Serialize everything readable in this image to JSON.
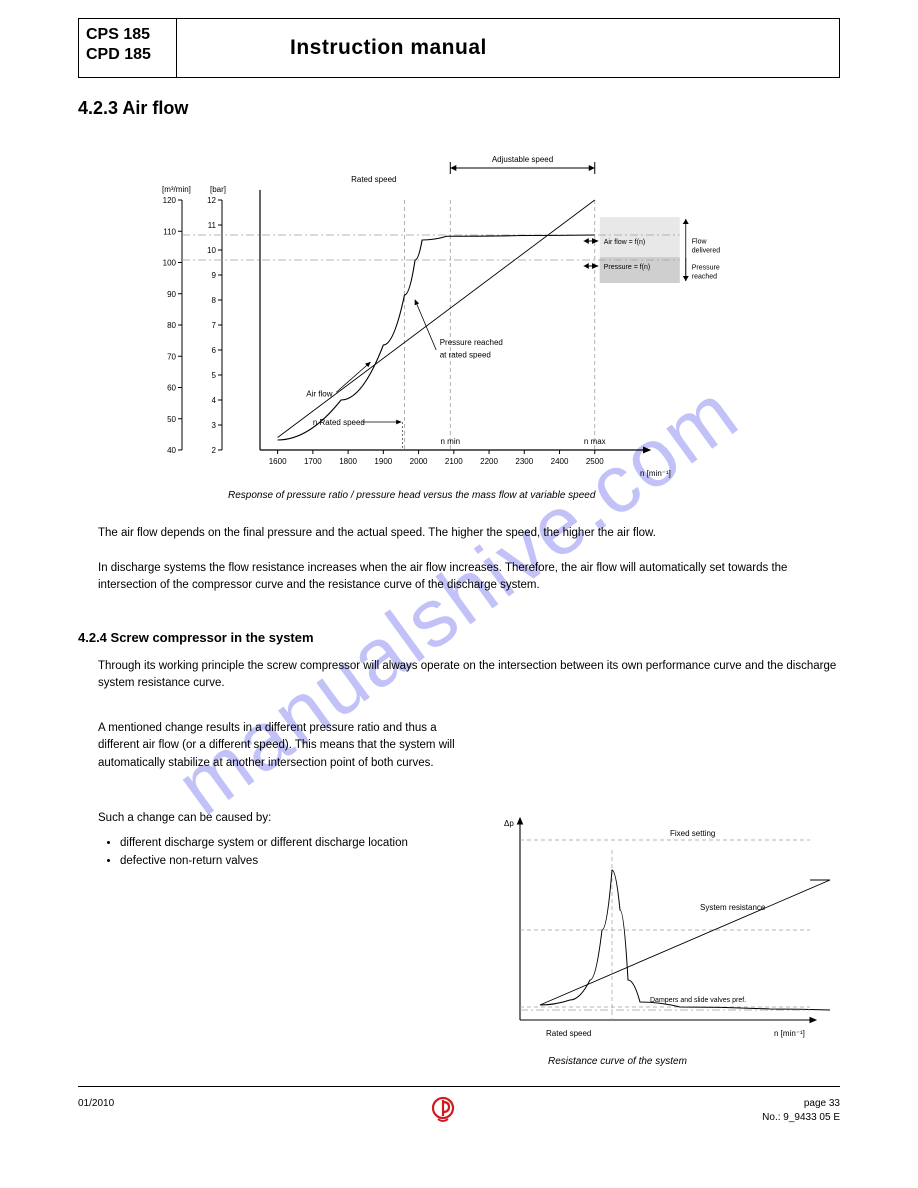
{
  "header": {
    "left_line1": "CPS 185",
    "left_line2": "CPD 185",
    "title": "Instruction manual"
  },
  "section_heading": "4.2.3 Air flow",
  "chart1": {
    "caption": "Response of pressure ratio / pressure head versus the mass flow at variable speed",
    "bg": "#ffffff",
    "axis_color": "#000000",
    "grid_dash_color": "#9e9e9e",
    "grid_dashdot_color": "#9e9e9e",
    "curve_color": "#000000",
    "font_color": "#000000",
    "font_size_small": 8,
    "light_band": "#e8e8e8",
    "dark_band": "#cfcfcf",
    "y1_label": "[m³/min]",
    "y1_ticks": [
      40,
      50,
      60,
      70,
      80,
      90,
      100,
      110,
      120
    ],
    "y1_range": [
      40,
      120
    ],
    "y2_label": "[bar]",
    "y2_ticks": [
      2,
      3,
      4,
      5,
      6,
      7,
      8,
      9,
      10,
      11,
      12
    ],
    "y2_range": [
      2,
      12
    ],
    "x_label": "n [min⁻¹]",
    "x_ticks": [
      1600,
      1700,
      1800,
      1900,
      2000,
      2100,
      2200,
      2300,
      2400,
      2500
    ],
    "x_range": [
      1550,
      2600
    ],
    "labels": {
      "rated_speed_top": "Rated speed",
      "adjustable_speed": "Adjustable speed",
      "air_flow": "Air flow",
      "pressure": "Pressure reached at rated speed",
      "air_flow_right": "Air flow = f(n)",
      "pressure_right": "Pressure = f(n)",
      "nmin": "n min",
      "nmax": "n max",
      "nrated_left": "n Rated speed",
      "flow_deliv": "Flow delivered",
      "press_reached": "Pressure reached"
    },
    "curves": {
      "airflow_line": [
        [
          1600,
          44
        ],
        [
          2500,
          120
        ]
      ],
      "pressure_curve": [
        [
          1600,
          2.4
        ],
        [
          1780,
          4.0
        ],
        [
          1900,
          6.2
        ],
        [
          1960,
          8.2
        ],
        [
          1990,
          9.6
        ],
        [
          2010,
          10.4
        ],
        [
          2080,
          10.55
        ],
        [
          2300,
          10.58
        ],
        [
          2500,
          10.6
        ]
      ]
    },
    "dashed_verticals": [
      1960,
      2090,
      2500
    ],
    "dashed_horizontals_y2": [
      10.6,
      9.6
    ],
    "band_top_y2": 10.6,
    "band_mid_y2": 9.6,
    "band_bot_y2": 9.0
  },
  "para1": "The air flow depends on the final pressure and the actual speed. The higher the speed, the higher the air flow.",
  "para2": "In discharge systems the flow resistance increases when the air flow increases. Therefore, the air flow will automatically set towards the intersection of the compressor curve and the resistance curve of the discharge system.",
  "section2_heading": "4.2.4 Screw compressor in the system",
  "para3": "Through its working principle the screw compressor will always operate on the intersection between its own performance curve and the discharge system resistance curve.",
  "bullets_intro": "Such a change can be caused by:",
  "bullets": [
    "different discharge system or different discharge location",
    "defective non-return valves"
  ],
  "chart2": {
    "caption": "Resistance curve of the system",
    "bg": "#ffffff",
    "axis_color": "#000000",
    "dash_color": "#9e9e9e",
    "curve_color": "#000000",
    "y_label": "Δp",
    "x_label": "n [min⁻¹]",
    "lbl_fixed": "Fixed setting",
    "lbl_sys": "System resistance",
    "lbl_dampers": "Dampers and slide valves pref.",
    "lbl_rated": "Rated speed",
    "system_line": [
      [
        20,
        195
      ],
      [
        310,
        70
      ]
    ],
    "peak_curve": [
      [
        20,
        195
      ],
      [
        50,
        190
      ],
      [
        70,
        170
      ],
      [
        82,
        120
      ],
      [
        92,
        60
      ],
      [
        100,
        100
      ],
      [
        108,
        170
      ],
      [
        120,
        192
      ],
      [
        160,
        197
      ],
      [
        250,
        199
      ],
      [
        310,
        200
      ]
    ],
    "dash_h": [
      30,
      120,
      197
    ],
    "dash_v": 92
  },
  "para4_left": "A mentioned change results in a different pressure ratio and thus a different air flow (or a different speed). This means that the system will automatically stabilize at another intersection point of both curves.",
  "footer": {
    "left": "01/2010",
    "right1": "page 33",
    "right2": "No.: 9_9433 05 E"
  },
  "watermark": "manualshive.com",
  "logo": {
    "ring": "#d31920",
    "inner": "#d31920"
  }
}
